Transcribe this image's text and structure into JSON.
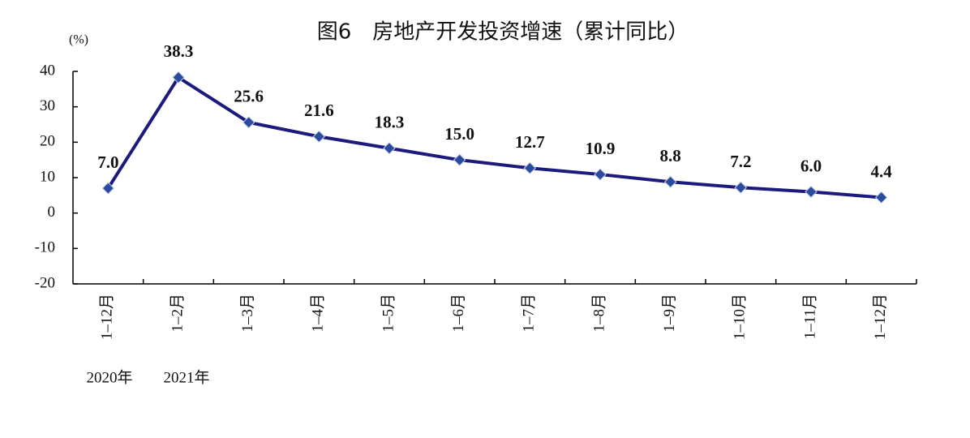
{
  "chart_data": {
    "type": "line",
    "title": "图6　房地产开发投资增速（累计同比）",
    "y_unit": "(%)",
    "categories": [
      "1–12月",
      "1–2月",
      "1–3月",
      "1–4月",
      "1–5月",
      "1–6月",
      "1–7月",
      "1–8月",
      "1–9月",
      "1–10月",
      "1–11月",
      "1–12月"
    ],
    "series": [
      {
        "color": "#1c1a7c",
        "marker_color": "#2b4b9e",
        "values": [
          7.0,
          38.3,
          25.6,
          21.6,
          18.3,
          15.0,
          12.7,
          10.9,
          8.8,
          7.2,
          6.0,
          4.4
        ],
        "value_labels": [
          "7.0",
          "38.3",
          "25.6",
          "21.6",
          "18.3",
          "15.0",
          "12.7",
          "10.9",
          "8.8",
          "7.2",
          "6.0",
          "4.4"
        ]
      }
    ],
    "year_labels": [
      "2020年",
      "2021年"
    ],
    "ylim": [
      -20,
      40
    ],
    "yticks": [
      -20,
      -10,
      0,
      10,
      20,
      30,
      40
    ],
    "grid": false
  }
}
